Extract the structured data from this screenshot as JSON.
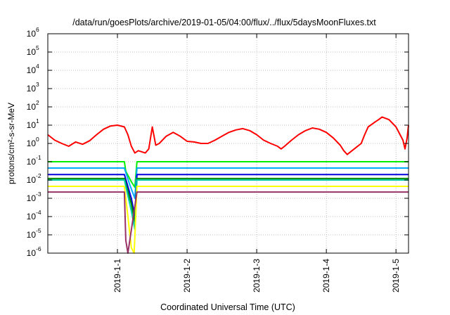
{
  "chart_data": {
    "type": "line",
    "title": "/data/run/goesPlots/archive/2019-01-05/04:00/flux/../flux/5daysMoonFluxes.txt",
    "xlabel": "Coordinated Universal Time (UTC)",
    "ylabel": "protons/cm²-s-sr-MeV",
    "y_scale": "log",
    "ylim": [
      1e-06,
      1000000.0
    ],
    "xlim": [
      -1.0,
      4.18
    ],
    "x_unit": "days relative to 2019-01-01 00:00 UTC",
    "x_ticks": [
      {
        "value": 0,
        "label": "2019-1-1"
      },
      {
        "value": 1,
        "label": "2019-1-2"
      },
      {
        "value": 2,
        "label": "2019-1-3"
      },
      {
        "value": 3,
        "label": "2019-1-4"
      },
      {
        "value": 4,
        "label": "2019-1-5"
      }
    ],
    "y_ticks": [
      {
        "value": 1e-06,
        "base": "10",
        "exp": "-6"
      },
      {
        "value": 1e-05,
        "base": "10",
        "exp": "-5"
      },
      {
        "value": 0.0001,
        "base": "10",
        "exp": "-4"
      },
      {
        "value": 0.001,
        "base": "10",
        "exp": "-3"
      },
      {
        "value": 0.01,
        "base": "10",
        "exp": "-2"
      },
      {
        "value": 0.1,
        "base": "10",
        "exp": "-1"
      },
      {
        "value": 1.0,
        "base": "10",
        "exp": "0"
      },
      {
        "value": 10.0,
        "base": "10",
        "exp": "1"
      },
      {
        "value": 100.0,
        "base": "10",
        "exp": "2"
      },
      {
        "value": 1000.0,
        "base": "10",
        "exp": "3"
      },
      {
        "value": 10000.0,
        "base": "10",
        "exp": "4"
      },
      {
        "value": 100000.0,
        "base": "10",
        "exp": "5"
      },
      {
        "value": 1000000.0,
        "base": "10",
        "exp": "6"
      }
    ],
    "grid": true,
    "legend": "none",
    "series": [
      {
        "color": "#ff0000",
        "points": [
          [
            -1.0,
            3.0
          ],
          [
            -0.9,
            1.5
          ],
          [
            -0.8,
            1.0
          ],
          [
            -0.7,
            0.7
          ],
          [
            -0.6,
            1.2
          ],
          [
            -0.5,
            0.9
          ],
          [
            -0.4,
            1.4
          ],
          [
            -0.3,
            3
          ],
          [
            -0.2,
            6
          ],
          [
            -0.1,
            9
          ],
          [
            0.0,
            10
          ],
          [
            0.1,
            8
          ],
          [
            0.15,
            3
          ],
          [
            0.2,
            0.7
          ],
          [
            0.25,
            0.3
          ],
          [
            0.3,
            0.4
          ],
          [
            0.4,
            0.3
          ],
          [
            0.45,
            0.5
          ],
          [
            0.5,
            8
          ],
          [
            0.55,
            0.8
          ],
          [
            0.6,
            1.0
          ],
          [
            0.7,
            2.5
          ],
          [
            0.8,
            4.0
          ],
          [
            0.9,
            2.5
          ],
          [
            1.0,
            1.3
          ],
          [
            1.1,
            1.2
          ],
          [
            1.2,
            1.0
          ],
          [
            1.3,
            1.0
          ],
          [
            1.4,
            1.5
          ],
          [
            1.5,
            2.5
          ],
          [
            1.6,
            4.0
          ],
          [
            1.7,
            5.5
          ],
          [
            1.8,
            6.5
          ],
          [
            1.9,
            5.0
          ],
          [
            2.0,
            3.0
          ],
          [
            2.1,
            1.5
          ],
          [
            2.2,
            1.0
          ],
          [
            2.3,
            0.7
          ],
          [
            2.35,
            0.5
          ],
          [
            2.4,
            0.7
          ],
          [
            2.5,
            1.5
          ],
          [
            2.6,
            3.0
          ],
          [
            2.7,
            5.0
          ],
          [
            2.8,
            7.0
          ],
          [
            2.9,
            6.0
          ],
          [
            3.0,
            4.0
          ],
          [
            3.1,
            2.0
          ],
          [
            3.2,
            0.8
          ],
          [
            3.25,
            0.4
          ],
          [
            3.3,
            0.25
          ],
          [
            3.4,
            0.5
          ],
          [
            3.5,
            1.0
          ],
          [
            3.55,
            3.0
          ],
          [
            3.6,
            8.0
          ],
          [
            3.7,
            15
          ],
          [
            3.75,
            20
          ],
          [
            3.8,
            28
          ],
          [
            3.9,
            20
          ],
          [
            4.0,
            8
          ],
          [
            4.1,
            1.5
          ],
          [
            4.13,
            0.5
          ],
          [
            4.16,
            2.0
          ],
          [
            4.18,
            10.0
          ]
        ]
      },
      {
        "color": "#00ee00",
        "points": [
          [
            -1.0,
            0.1
          ],
          [
            0.1,
            0.1
          ],
          [
            0.12,
            0.03
          ],
          [
            0.2,
            0.008
          ],
          [
            0.25,
            0.004
          ],
          [
            0.28,
            0.1
          ],
          [
            4.18,
            0.1
          ]
        ]
      },
      {
        "color": "#00aaff",
        "points": [
          [
            -1.0,
            0.045
          ],
          [
            0.1,
            0.045
          ],
          [
            0.18,
            0.005
          ],
          [
            0.25,
            0.001
          ],
          [
            0.28,
            0.045
          ],
          [
            4.18,
            0.045
          ]
        ]
      },
      {
        "color": "#0000dd",
        "points": [
          [
            -1.0,
            0.02
          ],
          [
            0.1,
            0.02
          ],
          [
            0.2,
            0.001
          ],
          [
            0.25,
            0.0001
          ],
          [
            0.28,
            0.02
          ],
          [
            4.18,
            0.02
          ]
        ]
      },
      {
        "color": "#008800",
        "points": [
          [
            -1.0,
            0.012
          ],
          [
            0.1,
            0.012
          ],
          [
            0.2,
            0.0005
          ],
          [
            0.25,
            5e-05
          ],
          [
            0.28,
            0.012
          ],
          [
            4.18,
            0.012
          ]
        ]
      },
      {
        "color": "#00ccaa",
        "points": [
          [
            -1.0,
            0.01
          ],
          [
            0.1,
            0.01
          ],
          [
            0.2,
            0.0002
          ],
          [
            0.25,
            2e-05
          ],
          [
            0.28,
            0.01
          ],
          [
            4.18,
            0.01
          ]
        ]
      },
      {
        "color": "#ffff00",
        "points": [
          [
            -1.0,
            0.0045
          ],
          [
            0.1,
            0.0045
          ],
          [
            0.15,
            0.0001
          ],
          [
            0.2,
            2e-06
          ],
          [
            0.24,
            1e-06
          ],
          [
            0.28,
            0.0045
          ],
          [
            4.18,
            0.0045
          ]
        ]
      },
      {
        "color": "#993366",
        "points": [
          [
            -1.0,
            0.0022
          ],
          [
            0.1,
            0.0022
          ],
          [
            0.12,
            5e-06
          ],
          [
            0.15,
            1e-06
          ],
          [
            0.28,
            0.0022
          ],
          [
            4.18,
            0.0022
          ]
        ]
      }
    ]
  }
}
